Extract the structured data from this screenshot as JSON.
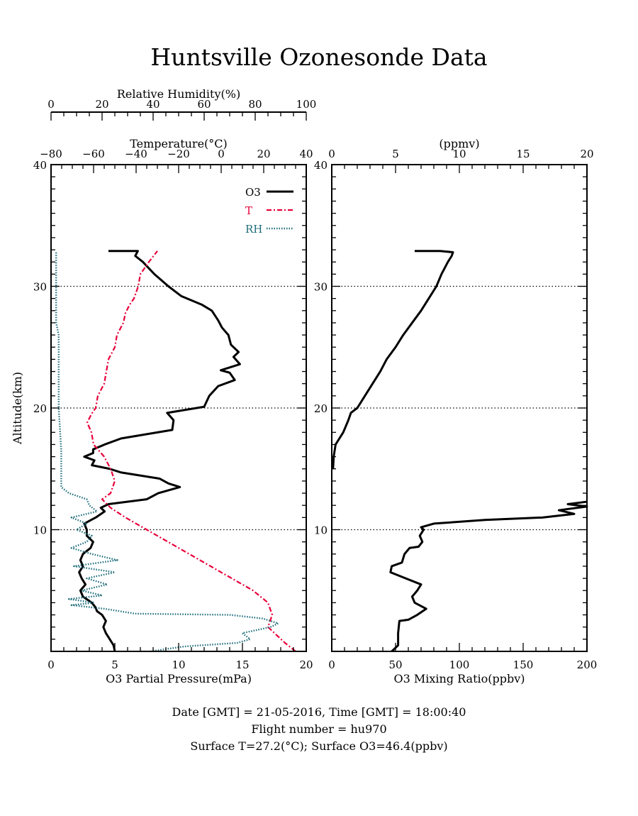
{
  "title": "Huntsville Ozonesonde Data",
  "footer": {
    "line1": "Date [GMT] = 21-05-2016,  Time [GMT] = 18:00:40",
    "line2": "Flight number = hu970",
    "line3": "Surface T=27.2(°C); Surface O3=46.4(ppbv)"
  },
  "colors": {
    "o3": "#000000",
    "temperature": "#e8003a",
    "rh": "#1f6e7a",
    "grid": "#000000"
  },
  "chart_data": [
    {
      "type": "line",
      "panel": "left",
      "ylabel": "Altitude(km)",
      "ylim": [
        0,
        40
      ],
      "yticks": [
        10,
        20,
        30,
        40
      ],
      "hgrid_at": [
        10,
        20,
        30
      ],
      "axes": {
        "o3": {
          "label": "O3 Partial Pressure(mPa)",
          "range": [
            0,
            20
          ],
          "ticks": [
            0,
            5,
            10,
            15,
            20
          ]
        },
        "temperature": {
          "label": "Temperature(°C)",
          "range": [
            -80,
            40
          ],
          "ticks": [
            -80,
            -60,
            -40,
            -20,
            0,
            20,
            40
          ]
        },
        "rh": {
          "label": "Relative Humidity(%)",
          "range": [
            0,
            100
          ],
          "ticks": [
            0,
            20,
            40,
            60,
            80,
            100
          ]
        }
      },
      "legend": {
        "placement": "top-right",
        "entries": [
          "O3",
          "T",
          "RH"
        ]
      },
      "series": [
        {
          "name": "O3",
          "axis": "o3",
          "style": "solid",
          "points": [
            [
              5.0,
              0.0
            ],
            [
              4.9,
              0.5
            ],
            [
              4.6,
              1.0
            ],
            [
              4.3,
              1.5
            ],
            [
              4.1,
              2.0
            ],
            [
              4.3,
              2.5
            ],
            [
              4.0,
              3.0
            ],
            [
              3.6,
              3.3
            ],
            [
              3.5,
              3.6
            ],
            [
              3.2,
              4.0
            ],
            [
              2.5,
              4.5
            ],
            [
              2.3,
              5.0
            ],
            [
              2.7,
              5.5
            ],
            [
              2.4,
              6.0
            ],
            [
              2.2,
              6.5
            ],
            [
              2.5,
              7.0
            ],
            [
              2.3,
              7.5
            ],
            [
              2.5,
              8.0
            ],
            [
              3.1,
              8.5
            ],
            [
              3.3,
              9.0
            ],
            [
              2.8,
              9.5
            ],
            [
              2.8,
              10.0
            ],
            [
              2.6,
              10.5
            ],
            [
              3.5,
              11.0
            ],
            [
              4.2,
              11.5
            ],
            [
              3.9,
              11.8
            ],
            [
              4.5,
              12.1
            ],
            [
              7.5,
              12.5
            ],
            [
              8.4,
              13.0
            ],
            [
              10.1,
              13.5
            ],
            [
              9.2,
              13.8
            ],
            [
              8.5,
              14.2
            ],
            [
              5.5,
              14.7
            ],
            [
              4.6,
              15.0
            ],
            [
              3.2,
              15.3
            ],
            [
              3.4,
              15.7
            ],
            [
              2.6,
              16.0
            ],
            [
              3.3,
              16.3
            ],
            [
              3.3,
              16.6
            ],
            [
              4.2,
              17.0
            ],
            [
              5.5,
              17.5
            ],
            [
              9.5,
              18.2
            ],
            [
              9.6,
              19.0
            ],
            [
              9.1,
              19.6
            ],
            [
              12.0,
              20.1
            ],
            [
              12.4,
              21.0
            ],
            [
              13.1,
              21.8
            ],
            [
              14.4,
              22.3
            ],
            [
              14.0,
              22.9
            ],
            [
              13.3,
              23.1
            ],
            [
              14.8,
              23.6
            ],
            [
              14.3,
              24.2
            ],
            [
              14.7,
              24.6
            ],
            [
              14.1,
              25.2
            ],
            [
              13.9,
              26.0
            ],
            [
              13.4,
              26.6
            ],
            [
              13.1,
              27.2
            ],
            [
              12.6,
              28.0
            ],
            [
              11.8,
              28.5
            ],
            [
              10.2,
              29.2
            ],
            [
              9.2,
              30.0
            ],
            [
              8.1,
              31.0
            ],
            [
              7.2,
              32.0
            ],
            [
              6.6,
              32.5
            ],
            [
              6.8,
              32.9
            ],
            [
              4.5,
              32.9
            ]
          ]
        },
        {
          "name": "T",
          "axis": "temperature",
          "style": "dash-dot",
          "points": [
            [
              35.0,
              0.0
            ],
            [
              30.0,
              0.7
            ],
            [
              22.0,
              2.0
            ],
            [
              24.0,
              3.0
            ],
            [
              22.0,
              4.0
            ],
            [
              15.0,
              5.0
            ],
            [
              5.0,
              6.0
            ],
            [
              -5.0,
              7.0
            ],
            [
              -15.0,
              8.0
            ],
            [
              -25.0,
              9.0
            ],
            [
              -35.0,
              10.0
            ],
            [
              -45.0,
              11.0
            ],
            [
              -52.0,
              11.8
            ],
            [
              -56.0,
              12.5
            ],
            [
              -52.0,
              13.0
            ],
            [
              -50.0,
              14.0
            ],
            [
              -52.0,
              15.0
            ],
            [
              -55.0,
              16.0
            ],
            [
              -60.0,
              17.0
            ],
            [
              -61.0,
              18.0
            ],
            [
              -63.0,
              18.8
            ],
            [
              -61.0,
              19.5
            ],
            [
              -59.0,
              20.0
            ],
            [
              -58.0,
              21.0
            ],
            [
              -55.0,
              22.0
            ],
            [
              -54.0,
              23.0
            ],
            [
              -53.0,
              24.0
            ],
            [
              -50.0,
              25.0
            ],
            [
              -49.0,
              26.0
            ],
            [
              -46.0,
              27.0
            ],
            [
              -45.0,
              27.8
            ],
            [
              -43.0,
              28.5
            ],
            [
              -41.0,
              29.0
            ],
            [
              -39.0,
              30.0
            ],
            [
              -38.0,
              31.0
            ],
            [
              -34.0,
              32.0
            ],
            [
              -30.0,
              32.9
            ]
          ]
        },
        {
          "name": "RH",
          "axis": "rh",
          "style": "dotted",
          "points": [
            [
              39.0,
              0.0
            ],
            [
              52.0,
              0.4
            ],
            [
              73.0,
              0.7
            ],
            [
              78.0,
              1.0
            ],
            [
              75.0,
              1.5
            ],
            [
              86.0,
              2.0
            ],
            [
              89.0,
              2.3
            ],
            [
              83.0,
              2.7
            ],
            [
              70.0,
              3.0
            ],
            [
              33.0,
              3.1
            ],
            [
              21.0,
              3.5
            ],
            [
              8.0,
              3.8
            ],
            [
              17.0,
              4.0
            ],
            [
              7.0,
              4.3
            ],
            [
              20.0,
              4.6
            ],
            [
              12.0,
              5.0
            ],
            [
              22.0,
              5.5
            ],
            [
              14.0,
              6.0
            ],
            [
              25.0,
              6.5
            ],
            [
              9.0,
              7.0
            ],
            [
              26.0,
              7.5
            ],
            [
              16.0,
              8.0
            ],
            [
              8.0,
              8.5
            ],
            [
              14.0,
              9.0
            ],
            [
              16.0,
              9.5
            ],
            [
              10.0,
              10.0
            ],
            [
              14.0,
              10.5
            ],
            [
              8.0,
              11.0
            ],
            [
              18.0,
              11.5
            ],
            [
              15.0,
              12.0
            ],
            [
              14.0,
              12.5
            ],
            [
              7.0,
              13.0
            ],
            [
              4.0,
              13.5
            ],
            [
              4.0,
              15.0
            ],
            [
              4.0,
              16.5
            ],
            [
              3.0,
              20.0
            ],
            [
              3.0,
              24.0
            ],
            [
              3.0,
              26.0
            ],
            [
              2.0,
              27.0
            ],
            [
              2.0,
              30.0
            ],
            [
              2.0,
              32.9
            ]
          ]
        }
      ]
    },
    {
      "type": "line",
      "panel": "right",
      "ylim": [
        0,
        40
      ],
      "yticks": [
        10,
        20,
        30,
        40
      ],
      "hgrid_at": [
        10,
        20,
        30
      ],
      "axes": {
        "ppbv": {
          "label": "O3 Mixing Ratio(ppbv)",
          "range": [
            0,
            200
          ],
          "ticks": [
            0,
            50,
            100,
            150,
            200
          ]
        },
        "ppmv": {
          "label": "(ppmv)",
          "range": [
            0,
            20
          ],
          "ticks": [
            0,
            5,
            10,
            15,
            20
          ]
        }
      },
      "series": [
        {
          "name": "O3 Mixing Ratio",
          "axis": "ppbv",
          "style": "solid",
          "points": [
            [
              47.0,
              0.0
            ],
            [
              52.0,
              0.5
            ],
            [
              52.0,
              1.5
            ],
            [
              53.0,
              2.5
            ],
            [
              60.0,
              2.6
            ],
            [
              67.0,
              3.0
            ],
            [
              74.0,
              3.5
            ],
            [
              65.0,
              4.0
            ],
            [
              63.0,
              4.5
            ],
            [
              67.0,
              5.0
            ],
            [
              70.0,
              5.5
            ],
            [
              58.0,
              6.0
            ],
            [
              46.0,
              6.5
            ],
            [
              47.0,
              7.0
            ],
            [
              55.0,
              7.3
            ],
            [
              57.0,
              8.0
            ],
            [
              61.0,
              8.5
            ],
            [
              68.0,
              8.6
            ],
            [
              71.0,
              9.0
            ],
            [
              69.0,
              9.5
            ],
            [
              72.0,
              10.0
            ],
            [
              70.0,
              10.2
            ],
            [
              80.0,
              10.5
            ],
            [
              120.0,
              10.8
            ],
            [
              165.0,
              11.0
            ],
            [
              190.0,
              11.3
            ],
            [
              178.0,
              11.6
            ],
            [
              200.0,
              11.9
            ],
            [
              185.0,
              12.1
            ],
            [
              200.0,
              12.3
            ]
          ]
        },
        {
          "name": "O3 Mixing Ratio (ppmv)",
          "axis": "ppmv",
          "style": "solid",
          "points": [
            [
              0.1,
              15.0
            ],
            [
              0.15,
              16.0
            ],
            [
              0.3,
              17.0
            ],
            [
              0.6,
              17.5
            ],
            [
              0.9,
              18.0
            ],
            [
              1.3,
              19.0
            ],
            [
              1.5,
              19.6
            ],
            [
              2.0,
              20.0
            ],
            [
              2.6,
              21.0
            ],
            [
              3.2,
              22.0
            ],
            [
              3.8,
              23.0
            ],
            [
              4.3,
              24.0
            ],
            [
              5.0,
              25.0
            ],
            [
              5.6,
              26.0
            ],
            [
              6.3,
              27.0
            ],
            [
              7.0,
              28.0
            ],
            [
              7.6,
              29.0
            ],
            [
              8.2,
              30.0
            ],
            [
              8.6,
              31.0
            ],
            [
              9.1,
              32.0
            ],
            [
              9.4,
              32.5
            ],
            [
              9.5,
              32.8
            ],
            [
              8.5,
              32.9
            ],
            [
              6.5,
              32.9
            ]
          ]
        }
      ]
    }
  ]
}
